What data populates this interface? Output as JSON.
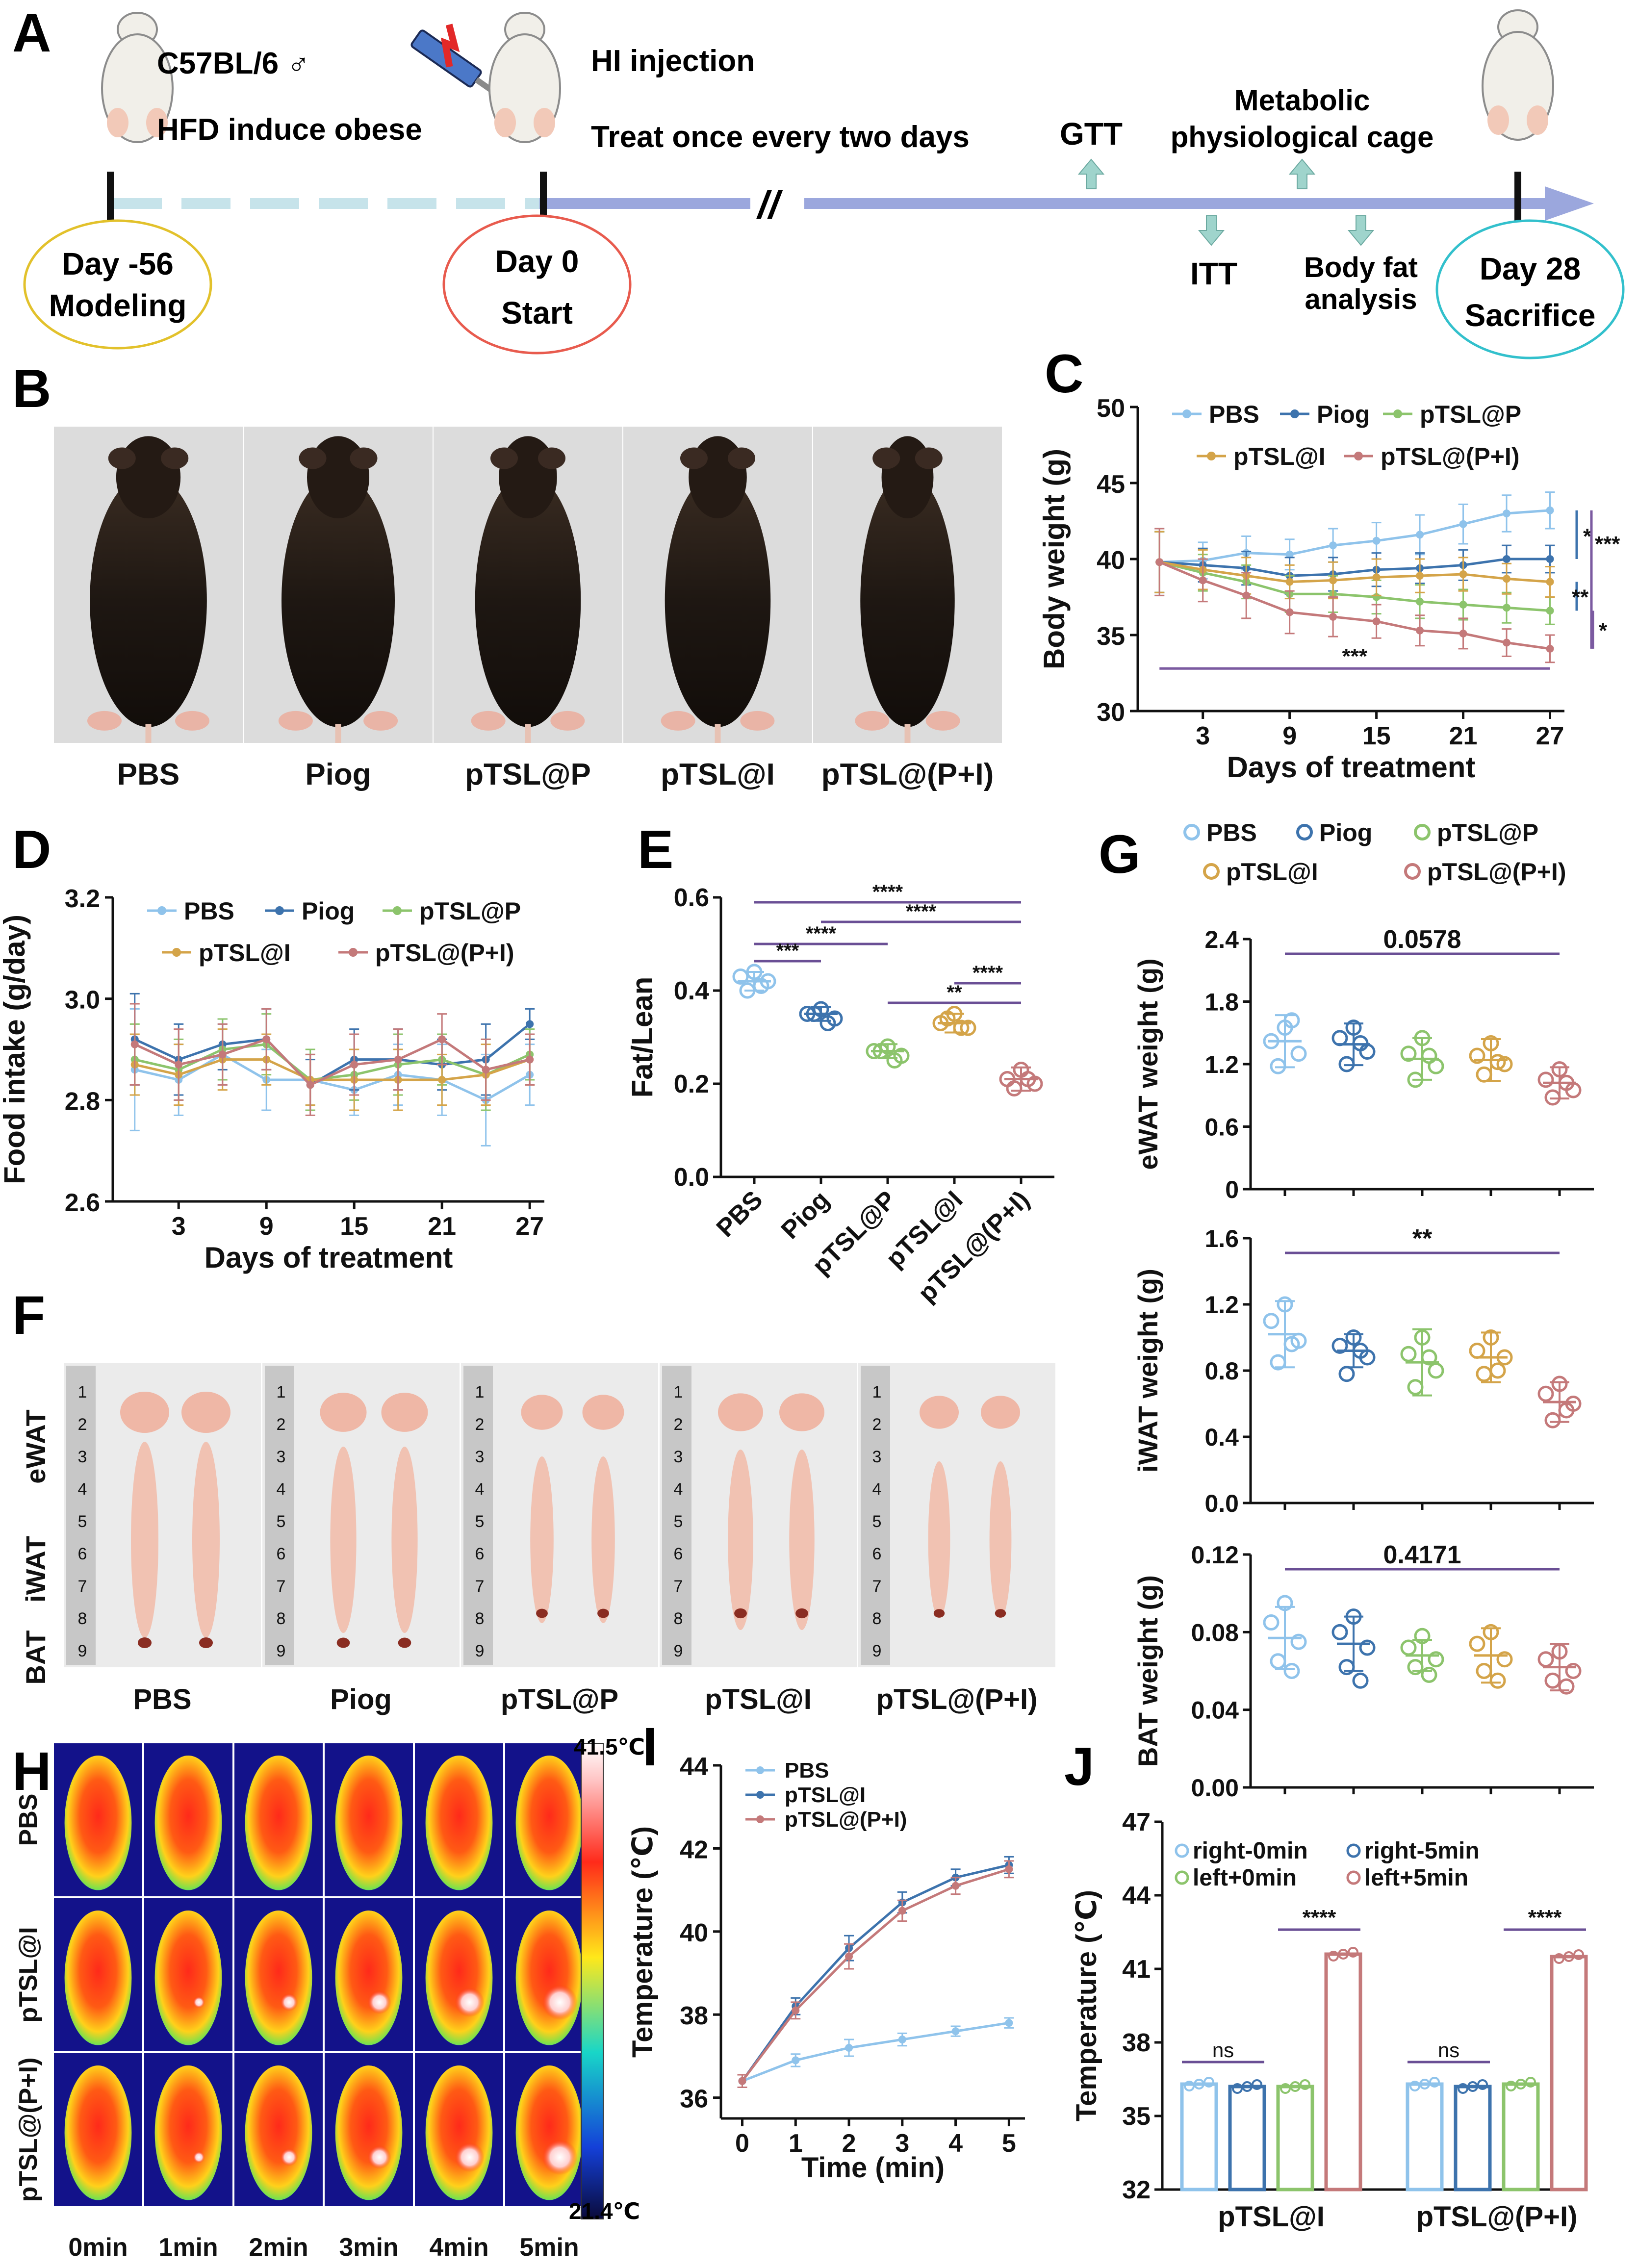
{
  "panel_letters": {
    "A": "A",
    "B": "B",
    "C": "C",
    "D": "D",
    "E": "E",
    "F": "F",
    "G": "G",
    "H": "H",
    "I": "I",
    "J": "J"
  },
  "timeline": {
    "mouse_strain": "C57BL/6 ♂",
    "hfd_text": "HFD induce obese",
    "hi_text": "HI injection",
    "treat_text": "Treat once every two days",
    "gtt": "GTT",
    "metabolic_line1": "Metabolic",
    "metabolic_line2": "physiological cage",
    "itt": "ITT",
    "bodyfat_line1": "Body fat",
    "bodyfat_line2": "analysis",
    "break_mark": "//",
    "circles": [
      {
        "line1": "Day -56",
        "line2": "Modeling",
        "color": "#e2c12b"
      },
      {
        "line1": "Day 0",
        "line2": "Start",
        "color": "#e85b4e"
      },
      {
        "line1": "Day 28",
        "line2": "Sacrifice",
        "color": "#32c0cc"
      }
    ],
    "dashed_color": "#c6e3ea",
    "arrow_color": "#9ba7dd",
    "small_arrow_color": "#9fd4cc"
  },
  "groups": [
    "PBS",
    "Piog",
    "pTSL@P",
    "pTSL@I",
    "pTSL@(P+I)"
  ],
  "colors": {
    "PBS": "#8fc3eb",
    "Piog": "#3d73ad",
    "pTSL@P": "#8cc46c",
    "pTSL@I": "#d4a449",
    "pTSL@(P+I)": "#c4797a"
  },
  "panel_B": {
    "labels": [
      "PBS",
      "Piog",
      "pTSL@P",
      "pTSL@I",
      "pTSL@(P+I)"
    ]
  },
  "panel_F": {
    "row_labels": [
      "eWAT",
      "iWAT",
      "BAT"
    ],
    "labels": [
      "PBS",
      "Piog",
      "pTSL@P",
      "pTSL@I",
      "pTSL@(P+I)"
    ],
    "ruler_numbers": [
      "1",
      "2",
      "3",
      "4",
      "5",
      "6",
      "7",
      "8",
      "9"
    ]
  },
  "panel_H": {
    "row_labels": [
      "PBS",
      "pTSL@I",
      "pTSL@(P+I)"
    ],
    "time_labels": [
      "0min",
      "1min",
      "2min",
      "3min",
      "4min",
      "5min"
    ],
    "scale_max": "41.5℃",
    "scale_min": "21.4℃"
  },
  "chart_data": [
    {
      "panel": "C",
      "type": "line",
      "title": "",
      "xlabel": "Days of treatment",
      "ylabel": "Body weight (g)",
      "x": [
        0,
        3,
        6,
        9,
        12,
        15,
        18,
        21,
        24,
        27
      ],
      "xticks": [
        "3",
        "9",
        "15",
        "21",
        "27"
      ],
      "yticks": [
        "30",
        "35",
        "40",
        "45",
        "50"
      ],
      "ylim": [
        30,
        50
      ],
      "series": [
        {
          "name": "PBS",
          "values": [
            39.8,
            39.9,
            40.4,
            40.3,
            40.9,
            41.2,
            41.6,
            42.3,
            43.0,
            43.2
          ],
          "errors": [
            2.2,
            1.2,
            1.1,
            1.0,
            1.1,
            1.2,
            1.3,
            1.3,
            1.2,
            1.2
          ]
        },
        {
          "name": "Piog",
          "values": [
            39.8,
            39.6,
            39.4,
            38.9,
            39.0,
            39.3,
            39.4,
            39.6,
            40.0,
            40.0
          ],
          "errors": [
            2.0,
            1.1,
            1.1,
            1.2,
            1.1,
            1.1,
            1.0,
            1.0,
            0.9,
            0.9
          ]
        },
        {
          "name": "pTSL@P",
          "values": [
            39.8,
            39.1,
            38.5,
            37.7,
            37.7,
            37.5,
            37.2,
            37.0,
            36.8,
            36.6
          ],
          "errors": [
            2.0,
            1.2,
            1.1,
            1.2,
            1.2,
            1.1,
            1.1,
            1.0,
            1.0,
            0.9
          ]
        },
        {
          "name": "pTSL@I",
          "values": [
            39.8,
            39.3,
            38.9,
            38.5,
            38.6,
            38.8,
            38.9,
            39.0,
            38.7,
            38.5
          ],
          "errors": [
            2.0,
            1.3,
            1.2,
            1.1,
            1.2,
            1.2,
            1.1,
            1.1,
            1.0,
            1.0
          ]
        },
        {
          "name": "pTSL@(P+I)",
          "values": [
            39.8,
            38.6,
            37.6,
            36.5,
            36.2,
            35.9,
            35.3,
            35.1,
            34.5,
            34.1
          ],
          "errors": [
            2.2,
            1.4,
            1.5,
            1.4,
            1.3,
            1.1,
            1.0,
            1.0,
            0.9,
            0.9
          ]
        }
      ],
      "legend": "top",
      "annotations": [
        "*",
        "***",
        "**",
        "*",
        "***"
      ]
    },
    {
      "panel": "D",
      "type": "line",
      "title": "",
      "xlabel": "Days of treatment",
      "ylabel": "Food intake (g/day)",
      "x": [
        0,
        3,
        6,
        9,
        12,
        15,
        18,
        21,
        24,
        27
      ],
      "xticks": [
        "3",
        "9",
        "15",
        "21",
        "27"
      ],
      "yticks": [
        "2.6",
        "2.8",
        "3.0",
        "3.2"
      ],
      "ylim": [
        2.6,
        3.2
      ],
      "series": [
        {
          "name": "PBS",
          "values": [
            2.86,
            2.84,
            2.89,
            2.84,
            2.84,
            2.82,
            2.85,
            2.84,
            2.8,
            2.85
          ],
          "errors": [
            0.12,
            0.07,
            0.06,
            0.06,
            0.05,
            0.05,
            0.06,
            0.07,
            0.09,
            0.06
          ]
        },
        {
          "name": "Piog",
          "values": [
            2.92,
            2.88,
            2.91,
            2.92,
            2.83,
            2.88,
            2.88,
            2.87,
            2.88,
            2.95
          ],
          "errors": [
            0.09,
            0.07,
            0.05,
            0.06,
            0.05,
            0.06,
            0.06,
            0.05,
            0.07,
            0.03
          ]
        },
        {
          "name": "pTSL@P",
          "values": [
            2.88,
            2.86,
            2.9,
            2.91,
            2.84,
            2.85,
            2.87,
            2.88,
            2.85,
            2.89
          ],
          "errors": [
            0.07,
            0.06,
            0.06,
            0.06,
            0.06,
            0.05,
            0.06,
            0.05,
            0.07,
            0.05
          ]
        },
        {
          "name": "pTSL@I",
          "values": [
            2.87,
            2.85,
            2.88,
            2.88,
            2.84,
            2.84,
            2.84,
            2.84,
            2.85,
            2.88
          ],
          "errors": [
            0.06,
            0.06,
            0.06,
            0.05,
            0.05,
            0.06,
            0.06,
            0.05,
            0.06,
            0.05
          ]
        },
        {
          "name": "pTSL@(P+I)",
          "values": [
            2.91,
            2.87,
            2.89,
            2.92,
            2.83,
            2.87,
            2.88,
            2.92,
            2.86,
            2.88
          ],
          "errors": [
            0.08,
            0.07,
            0.06,
            0.06,
            0.06,
            0.06,
            0.06,
            0.05,
            0.06,
            0.05
          ]
        }
      ],
      "legend": "top"
    },
    {
      "panel": "E",
      "type": "scatter",
      "title": "",
      "xlabel": "",
      "ylabel": "Fat/Lean",
      "categories": [
        "PBS",
        "Piog",
        "pTSL@P",
        "pTSL@I",
        "pTSL@(P+I)"
      ],
      "yticks": [
        "0.0",
        "0.2",
        "0.4",
        "0.6"
      ],
      "ylim": [
        0,
        0.6
      ],
      "means": [
        0.42,
        0.35,
        0.27,
        0.33,
        0.21
      ],
      "sds": [
        0.02,
        0.015,
        0.015,
        0.02,
        0.025
      ],
      "points": [
        [
          0.44,
          0.43,
          0.42,
          0.4,
          0.41
        ],
        [
          0.36,
          0.35,
          0.34,
          0.35,
          0.33
        ],
        [
          0.28,
          0.27,
          0.26,
          0.27,
          0.25
        ],
        [
          0.35,
          0.33,
          0.32,
          0.34,
          0.32
        ],
        [
          0.23,
          0.21,
          0.2,
          0.19,
          0.21
        ]
      ],
      "comparisons": [
        {
          "from": "PBS",
          "to": "Piog",
          "label": "***"
        },
        {
          "from": "PBS",
          "to": "pTSL@P",
          "label": "****"
        },
        {
          "from": "Piog",
          "to": "pTSL@(P+I)",
          "label": "****"
        },
        {
          "from": "PBS",
          "to": "pTSL@(P+I)",
          "label": "****"
        },
        {
          "from": "pTSL@I",
          "to": "pTSL@(P+I)",
          "label": "****"
        },
        {
          "from": "pTSL@P",
          "to": "pTSL@(P+I)",
          "label": "**"
        }
      ]
    },
    {
      "panel": "G-eWAT",
      "type": "scatter",
      "title": "",
      "xlabel": "",
      "ylabel": "eWAT weight (g)",
      "categories": [
        "PBS",
        "Piog",
        "pTSL@P",
        "pTSL@I",
        "pTSL@(P+I)"
      ],
      "yticks": [
        "0",
        "0.6",
        "1.2",
        "1.8",
        "2.4"
      ],
      "ylim": [
        0,
        2.4
      ],
      "means": [
        1.42,
        1.39,
        1.25,
        1.24,
        1.02
      ],
      "sds": [
        0.25,
        0.2,
        0.2,
        0.2,
        0.15
      ],
      "points": [
        [
          1.55,
          1.42,
          1.3,
          1.18,
          1.62
        ],
        [
          1.55,
          1.45,
          1.32,
          1.2,
          1.4
        ],
        [
          1.45,
          1.3,
          1.18,
          1.05,
          1.28
        ],
        [
          1.4,
          1.28,
          1.2,
          1.1,
          1.22
        ],
        [
          1.15,
          1.05,
          0.95,
          0.88,
          1.02
        ]
      ],
      "comparisons": [
        {
          "from": "PBS",
          "to": "pTSL@(P+I)",
          "label": "0.0578"
        }
      ]
    },
    {
      "panel": "G-iWAT",
      "type": "scatter",
      "title": "",
      "xlabel": "",
      "ylabel": "iWAT weight (g)",
      "categories": [
        "PBS",
        "Piog",
        "pTSL@P",
        "pTSL@I",
        "pTSL@(P+I)"
      ],
      "yticks": [
        "0.0",
        "0.4",
        "0.8",
        "1.2",
        "1.6"
      ],
      "ylim": [
        0,
        1.6
      ],
      "means": [
        1.02,
        0.92,
        0.85,
        0.88,
        0.61
      ],
      "sds": [
        0.2,
        0.1,
        0.2,
        0.15,
        0.12
      ],
      "points": [
        [
          1.2,
          1.1,
          0.98,
          0.85,
          0.96
        ],
        [
          1.0,
          0.95,
          0.88,
          0.78,
          0.92
        ],
        [
          1.0,
          0.9,
          0.8,
          0.7,
          0.88
        ],
        [
          1.0,
          0.92,
          0.88,
          0.78,
          0.8
        ],
        [
          0.72,
          0.66,
          0.6,
          0.5,
          0.56
        ]
      ],
      "comparisons": [
        {
          "from": "PBS",
          "to": "pTSL@(P+I)",
          "label": "**"
        }
      ]
    },
    {
      "panel": "G-BAT",
      "type": "scatter",
      "title": "",
      "xlabel": "",
      "ylabel": "BAT weight (g)",
      "categories": [
        "PBS",
        "Piog",
        "pTSL@P",
        "pTSL@I",
        "pTSL@(P+I)"
      ],
      "yticks": [
        "0.00",
        "0.04",
        "0.08",
        "0.12"
      ],
      "ylim": [
        0,
        0.12
      ],
      "means": [
        0.077,
        0.074,
        0.068,
        0.068,
        0.062
      ],
      "sds": [
        0.016,
        0.014,
        0.008,
        0.014,
        0.012
      ],
      "points": [
        [
          0.095,
          0.085,
          0.075,
          0.065,
          0.06
        ],
        [
          0.088,
          0.08,
          0.072,
          0.062,
          0.055
        ],
        [
          0.078,
          0.072,
          0.066,
          0.062,
          0.058
        ],
        [
          0.08,
          0.074,
          0.066,
          0.06,
          0.055
        ],
        [
          0.07,
          0.066,
          0.06,
          0.055,
          0.052
        ]
      ],
      "comparisons": [
        {
          "from": "PBS",
          "to": "pTSL@(P+I)",
          "label": "0.4171"
        }
      ]
    },
    {
      "panel": "I",
      "type": "line",
      "title": "",
      "xlabel": "Time (min)",
      "ylabel": "Temperature (℃)",
      "x": [
        0,
        1,
        2,
        3,
        4,
        5
      ],
      "xticks": [
        "0",
        "1",
        "2",
        "3",
        "4",
        "5"
      ],
      "yticks": [
        "36",
        "38",
        "40",
        "42",
        "44"
      ],
      "ylim": [
        35.5,
        44
      ],
      "series": [
        {
          "name": "PBS",
          "values": [
            36.4,
            36.9,
            37.2,
            37.4,
            37.6,
            37.8
          ],
          "errors": [
            0.15,
            0.15,
            0.2,
            0.15,
            0.12,
            0.12
          ],
          "color": "#8fc3eb"
        },
        {
          "name": "pTSL@I",
          "values": [
            36.4,
            38.2,
            39.6,
            40.7,
            41.3,
            41.6
          ],
          "errors": [
            0.15,
            0.2,
            0.3,
            0.25,
            0.2,
            0.2
          ],
          "color": "#3d73ad"
        },
        {
          "name": "pTSL@(P+I)",
          "values": [
            36.4,
            38.1,
            39.4,
            40.5,
            41.1,
            41.5
          ],
          "errors": [
            0.15,
            0.2,
            0.3,
            0.25,
            0.2,
            0.2
          ],
          "color": "#c4797a"
        }
      ],
      "legend": "top-left"
    },
    {
      "panel": "J",
      "type": "bar",
      "title": "",
      "xlabel": "",
      "ylabel": "Temperature (℃)",
      "categories": [
        "pTSL@I",
        "pTSL@(P+I)"
      ],
      "yticks": [
        "32",
        "35",
        "38",
        "41",
        "44",
        "47"
      ],
      "ylim": [
        32,
        47
      ],
      "series": [
        {
          "name": "right-0min",
          "values": [
            36.3,
            36.3
          ],
          "color": "#8fc3eb"
        },
        {
          "name": "right-5min",
          "values": [
            36.2,
            36.2
          ],
          "color": "#3d73ad"
        },
        {
          "name": "left+0min",
          "values": [
            36.2,
            36.3
          ],
          "color": "#8cc46c"
        },
        {
          "name": "left+5min",
          "values": [
            41.6,
            41.5
          ],
          "color": "#c4797a"
        }
      ],
      "annotations": [
        "ns",
        "****",
        "ns",
        "****"
      ],
      "legend": "top"
    }
  ]
}
